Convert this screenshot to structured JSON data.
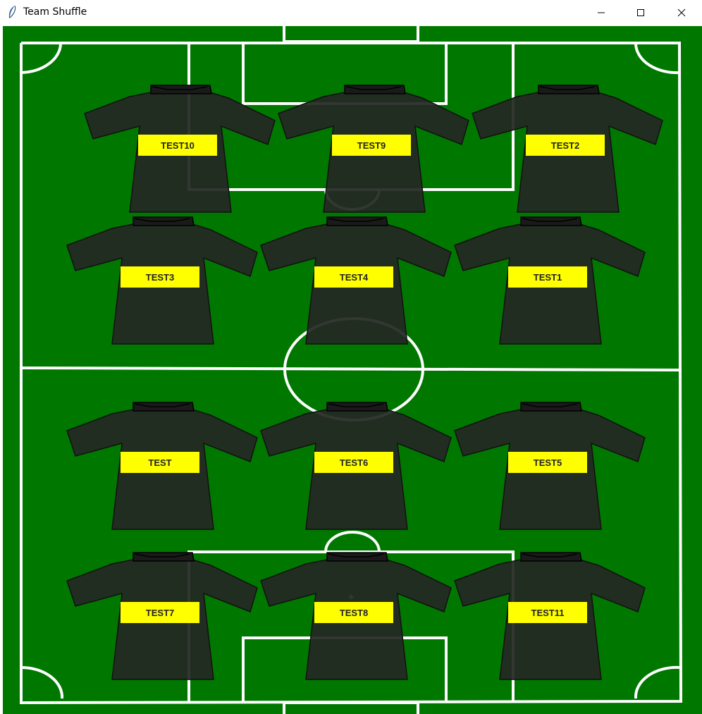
{
  "window": {
    "title": "Team Shuffle",
    "icon": "feather-icon",
    "controls": [
      "minimize-icon",
      "maximize-icon",
      "close-icon"
    ]
  },
  "colors": {
    "pitch": "#007800",
    "lines": "#ffffff",
    "shirt": "#222a22",
    "name_bar": "#ffff00"
  },
  "players": [
    {
      "name": "TEST10"
    },
    {
      "name": "TEST9"
    },
    {
      "name": "TEST2"
    },
    {
      "name": "TEST3"
    },
    {
      "name": "TEST4"
    },
    {
      "name": "TEST1"
    },
    {
      "name": "TEST"
    },
    {
      "name": "TEST6"
    },
    {
      "name": "TEST5"
    },
    {
      "name": "TEST7"
    },
    {
      "name": "TEST8"
    },
    {
      "name": "TEST11"
    }
  ]
}
